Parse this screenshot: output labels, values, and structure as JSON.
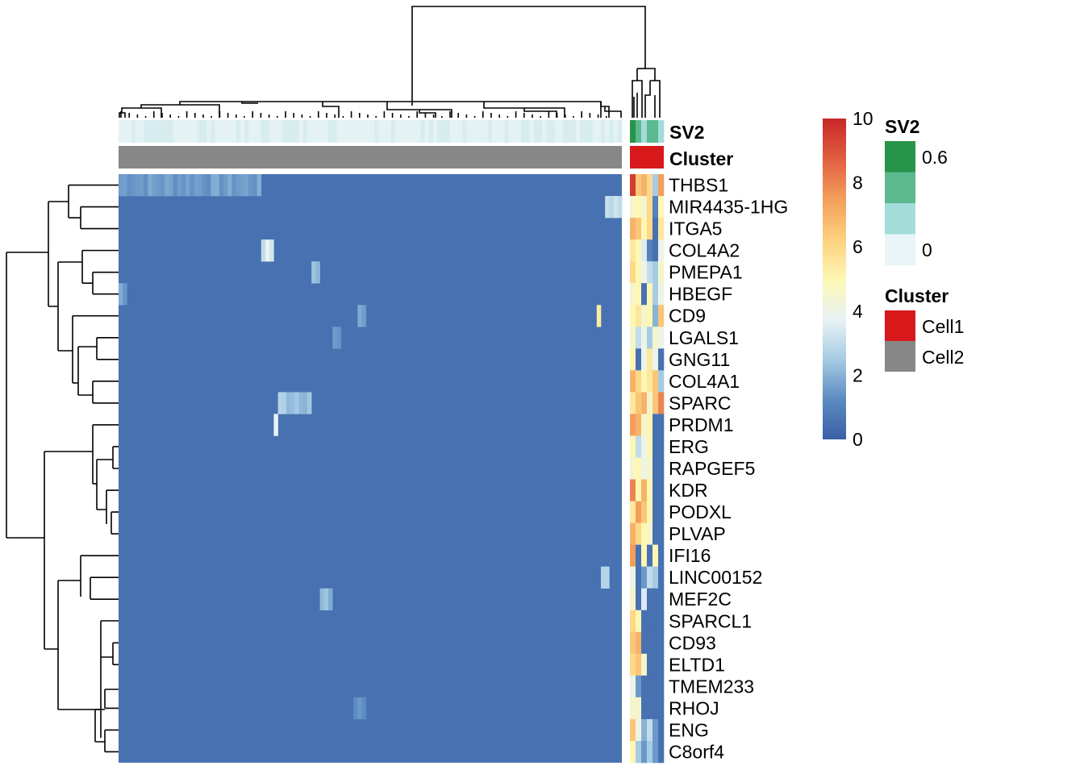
{
  "chart_data": {
    "type": "heatmap",
    "title": "",
    "rows": [
      "THBS1",
      "MIR4435-1HG",
      "ITGA5",
      "COL4A2",
      "PMEPA1",
      "HBEGF",
      "CD9",
      "LGALS1",
      "GNG11",
      "COL4A1",
      "SPARC",
      "PRDM1",
      "ERG",
      "RAPGEF5",
      "KDR",
      "PODXL",
      "PLVAP",
      "IFI16",
      "LINC00152",
      "MEF2C",
      "SPARCL1",
      "CD93",
      "ELTD1",
      "TMEM233",
      "RHOJ",
      "ENG",
      "C8orf4"
    ],
    "column_groups": [
      {
        "name": "Cell2",
        "n_columns": 120
      },
      {
        "name": "Cell1",
        "n_columns": 6
      }
    ],
    "annotations": {
      "row_labels": [
        "SV2",
        "Cluster"
      ]
    },
    "color_scale": {
      "min": 0,
      "max": 10,
      "ticks": [
        "0",
        "2",
        "4",
        "6",
        "8",
        "10"
      ],
      "colors": [
        "#3A5FA7",
        "#5C8BC1",
        "#A6CCE4",
        "#E9F3F4",
        "#FDF7B3",
        "#FDD07E",
        "#F39E5B",
        "#E15E3F",
        "#C72727"
      ]
    },
    "sv2_legend": {
      "title": "SV2",
      "ticks": [
        "0.6",
        "0"
      ],
      "colors": [
        "#27944A",
        "#5BB990",
        "#A3DCD8",
        "#E9F5F8"
      ]
    },
    "cluster_legend": {
      "title": "Cluster",
      "entries": [
        {
          "label": "Cell1",
          "color": "#D7191C"
        },
        {
          "label": "Cell2",
          "color": "#878787"
        }
      ]
    },
    "cell1_values": [
      [
        9.5,
        6.5,
        7.0,
        6.0,
        2.5,
        7.5
      ],
      [
        4.5,
        5.0,
        4.5,
        6.0,
        1.0,
        5.0
      ],
      [
        7.0,
        6.5,
        5.0,
        6.0,
        0.5,
        5.5
      ],
      [
        5.5,
        5.0,
        3.5,
        1.0,
        0.5,
        4.0
      ],
      [
        6.0,
        5.0,
        4.0,
        3.0,
        2.5,
        4.5
      ],
      [
        4.5,
        5.0,
        0.5,
        5.0,
        2.5,
        4.0
      ],
      [
        5.0,
        5.5,
        4.5,
        5.0,
        2.0,
        6.5
      ],
      [
        4.5,
        3.0,
        4.0,
        2.5,
        4.5,
        4.0
      ],
      [
        5.0,
        0.5,
        4.0,
        5.5,
        4.0,
        0.5
      ],
      [
        7.0,
        6.0,
        5.0,
        5.5,
        6.5,
        2.5
      ],
      [
        5.5,
        6.5,
        7.0,
        4.5,
        6.5,
        8.0
      ],
      [
        7.5,
        7.0,
        4.5,
        5.0,
        0.5,
        0.5
      ],
      [
        5.0,
        3.0,
        4.0,
        5.0,
        0.5,
        0.5
      ],
      [
        4.5,
        5.0,
        4.0,
        4.5,
        0.5,
        0.5
      ],
      [
        8.0,
        5.0,
        7.0,
        5.0,
        0.5,
        0.5
      ],
      [
        5.5,
        7.5,
        6.5,
        5.0,
        0.5,
        0.5
      ],
      [
        7.0,
        6.0,
        5.0,
        4.5,
        0.5,
        0.5
      ],
      [
        7.5,
        0.5,
        5.0,
        0.5,
        5.0,
        0.5
      ],
      [
        4.0,
        0.5,
        1.5,
        3.0,
        2.5,
        0.5
      ],
      [
        4.5,
        0.5,
        3.5,
        0.5,
        0.5,
        0.5
      ],
      [
        6.0,
        5.0,
        0.5,
        0.5,
        0.5,
        0.5
      ],
      [
        6.5,
        7.0,
        0.5,
        0.5,
        0.5,
        0.5
      ],
      [
        6.0,
        6.5,
        4.5,
        0.5,
        0.5,
        0.5
      ],
      [
        4.0,
        1.5,
        0.5,
        0.5,
        0.5,
        0.5
      ],
      [
        4.5,
        4.5,
        0.5,
        0.5,
        0.5,
        0.5
      ],
      [
        6.5,
        4.0,
        2.0,
        3.0,
        1.5,
        0.5
      ],
      [
        5.0,
        2.5,
        1.5,
        2.5,
        1.5,
        0.5
      ]
    ],
    "cell2_background": 0.5,
    "cell2_highlights": [
      {
        "row": 0,
        "cols": [
          0,
          33
        ],
        "value": 1.6
      },
      {
        "row": 1,
        "cols": [
          116,
          119
        ],
        "value": 3.2
      },
      {
        "row": 3,
        "cols": [
          34,
          36
        ],
        "value": 3.5
      },
      {
        "row": 4,
        "cols": [
          46,
          47
        ],
        "value": 2.5
      },
      {
        "row": 5,
        "cols": [
          0,
          1
        ],
        "value": 1.6
      },
      {
        "row": 6,
        "cols": [
          57,
          58
        ],
        "value": 1.6
      },
      {
        "row": 6,
        "cols": [
          114,
          114
        ],
        "value": 6.0
      },
      {
        "row": 7,
        "cols": [
          51,
          52
        ],
        "value": 1.5
      },
      {
        "row": 10,
        "cols": [
          38,
          45
        ],
        "value": 2.5
      },
      {
        "row": 11,
        "cols": [
          37,
          37
        ],
        "value": 3.5
      },
      {
        "row": 19,
        "cols": [
          48,
          50
        ],
        "value": 2.0
      },
      {
        "row": 18,
        "cols": [
          115,
          116
        ],
        "value": 2.8
      },
      {
        "row": 24,
        "cols": [
          56,
          58
        ],
        "value": 1.3
      }
    ]
  }
}
